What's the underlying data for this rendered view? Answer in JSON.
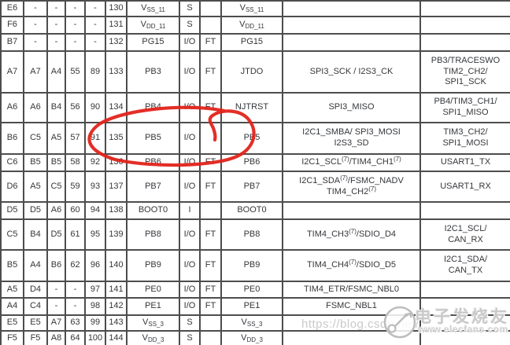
{
  "annotation": {
    "color": "#e2231a",
    "meaning": "hand-drawn circle highlighting PB5 row empty FT cell"
  },
  "watermark": {
    "url": "https://blog.csdn.net/",
    "brand": "电子发烧友",
    "site": "www.elecfans.com",
    "logo_icon": "elecfans-circle-node-logo"
  },
  "table": {
    "rows": [
      {
        "pins": [
          "E6",
          "-",
          "-",
          "-",
          "-",
          "130"
        ],
        "name": "V~SS_11~",
        "type": "S",
        "ft": "",
        "main": "V~SS_11~",
        "alt": "",
        "remap": ""
      },
      {
        "pins": [
          "F6",
          "-",
          "-",
          "-",
          "-",
          "131"
        ],
        "name": "V~DD_11~",
        "type": "S",
        "ft": "",
        "main": "V~DD_11~",
        "alt": "",
        "remap": ""
      },
      {
        "pins": [
          "B7",
          "-",
          "-",
          "-",
          "-",
          "132"
        ],
        "name": "PG15",
        "type": "I/O",
        "ft": "FT",
        "main": "PG15",
        "alt": "",
        "remap": ""
      },
      {
        "pins": [
          "A7",
          "A7",
          "A4",
          "55",
          "89",
          "133"
        ],
        "name": "PB3",
        "type": "I/O",
        "ft": "FT",
        "main": "JTDO",
        "alt": "SPI3_SCK / I2S3_CK",
        "remap": "PB3/TRACESWO\nTIM2_CH2/\nSPI1_SCK"
      },
      {
        "pins": [
          "A6",
          "A6",
          "B4",
          "56",
          "90",
          "134"
        ],
        "name": "PB4",
        "type": "I/O",
        "ft": "FT",
        "main": "NJTRST",
        "alt": "SPI3_MISO",
        "remap": "PB4/TIM3_CH1/\nSPI1_MISO"
      },
      {
        "pins": [
          "B6",
          "C5",
          "A5",
          "57",
          "91",
          "135"
        ],
        "name": "PB5",
        "type": "I/O",
        "ft": "",
        "main": "PB5",
        "alt": "I2C1_SMBA/ SPI3_MOSI\nI2S3_SD",
        "remap": "TIM3_CH2/\nSPI1_MOSI"
      },
      {
        "pins": [
          "C6",
          "B5",
          "B5",
          "58",
          "92",
          "136"
        ],
        "name": "PB6",
        "type": "I/O",
        "ft": "FT",
        "main": "PB6",
        "alt": "I2C1_SCL^(7)^/TIM4_CH1^(7)^",
        "remap": "USART1_TX"
      },
      {
        "pins": [
          "D6",
          "A5",
          "C5",
          "59",
          "93",
          "137"
        ],
        "name": "PB7",
        "type": "I/O",
        "ft": "FT",
        "main": "PB7",
        "alt": "I2C1_SDA^(7)^/FSMC_NADV\nTIM4_CH2^(7)^",
        "remap": "USART1_RX"
      },
      {
        "pins": [
          "D5",
          "D5",
          "A6",
          "60",
          "94",
          "138"
        ],
        "name": "BOOT0",
        "type": "I",
        "ft": "",
        "main": "BOOT0",
        "alt": "",
        "remap": ""
      },
      {
        "pins": [
          "C5",
          "B4",
          "D5",
          "61",
          "95",
          "139"
        ],
        "name": "PB8",
        "type": "I/O",
        "ft": "FT",
        "main": "PB8",
        "alt": "TIM4_CH3^(7)^/SDIO_D4",
        "remap": "I2C1_SCL/\nCAN_RX"
      },
      {
        "pins": [
          "B5",
          "A4",
          "B6",
          "62",
          "96",
          "140"
        ],
        "name": "PB9",
        "type": "I/O",
        "ft": "FT",
        "main": "PB9",
        "alt": "TIM4_CH4^(7)^/SDIO_D5",
        "remap": "I2C1_SDA/\nCAN_TX"
      },
      {
        "pins": [
          "A5",
          "D4",
          "-",
          "-",
          "97",
          "141"
        ],
        "name": "PE0",
        "type": "I/O",
        "ft": "FT",
        "main": "PE0",
        "alt": "TIM4_ETR/FSMC_NBL0",
        "remap": ""
      },
      {
        "pins": [
          "A4",
          "C4",
          "-",
          "-",
          "98",
          "142"
        ],
        "name": "PE1",
        "type": "I/O",
        "ft": "FT",
        "main": "PE1",
        "alt": "FSMC_NBL1",
        "remap": ""
      },
      {
        "pins": [
          "E5",
          "E5",
          "A7",
          "63",
          "99",
          "143"
        ],
        "name": "V~SS_3~",
        "type": "S",
        "ft": "",
        "main": "V~SS_3~",
        "alt": "",
        "remap": ""
      },
      {
        "pins": [
          "F5",
          "F5",
          "A8",
          "64",
          "100",
          "144"
        ],
        "name": "V~DD_3~",
        "type": "S",
        "ft": "",
        "main": "V~DD_3~",
        "alt": "",
        "remap": ""
      }
    ]
  }
}
